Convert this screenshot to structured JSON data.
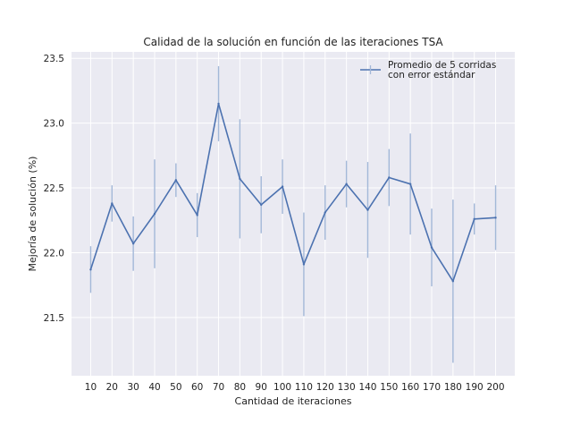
{
  "chart_data": {
    "type": "line",
    "title": "Calidad de la solución en función de las iteraciones TSA",
    "xlabel": "Cantidad de iteraciones",
    "ylabel": "Mejoría de solución (%)",
    "x": [
      10,
      20,
      30,
      40,
      50,
      60,
      70,
      80,
      90,
      100,
      110,
      120,
      130,
      140,
      150,
      160,
      170,
      180,
      190,
      200
    ],
    "xticks": [
      "10",
      "20",
      "30",
      "40",
      "50",
      "60",
      "70",
      "80",
      "90",
      "100",
      "110",
      "120",
      "130",
      "140",
      "150",
      "160",
      "170",
      "180",
      "190",
      "200"
    ],
    "yticks": [
      "21.5",
      "22.0",
      "22.5",
      "23.0",
      "23.5"
    ],
    "ylim": [
      21.05,
      23.55
    ],
    "xlim": [
      1,
      209
    ],
    "grid": true,
    "legend_position": "top-right",
    "series": [
      {
        "name": "Promedio de 5 corridas\ncon error estándar",
        "color": "#4c72b0",
        "errorbar_color": "#a3b8d8",
        "values": [
          21.87,
          22.38,
          22.07,
          22.3,
          22.56,
          22.29,
          23.15,
          22.57,
          22.37,
          22.51,
          21.91,
          22.31,
          22.53,
          22.33,
          22.58,
          22.53,
          22.04,
          21.78,
          22.26,
          22.27
        ],
        "errors": [
          0.18,
          0.14,
          0.21,
          0.42,
          0.13,
          0.17,
          0.29,
          0.46,
          0.22,
          0.21,
          0.4,
          0.21,
          0.18,
          0.37,
          0.22,
          0.39,
          0.3,
          0.63,
          0.12,
          0.25
        ]
      }
    ]
  },
  "colors": {
    "plot_background": "#eaeaf2",
    "grid": "#ffffff",
    "page_background": "#ffffff"
  }
}
